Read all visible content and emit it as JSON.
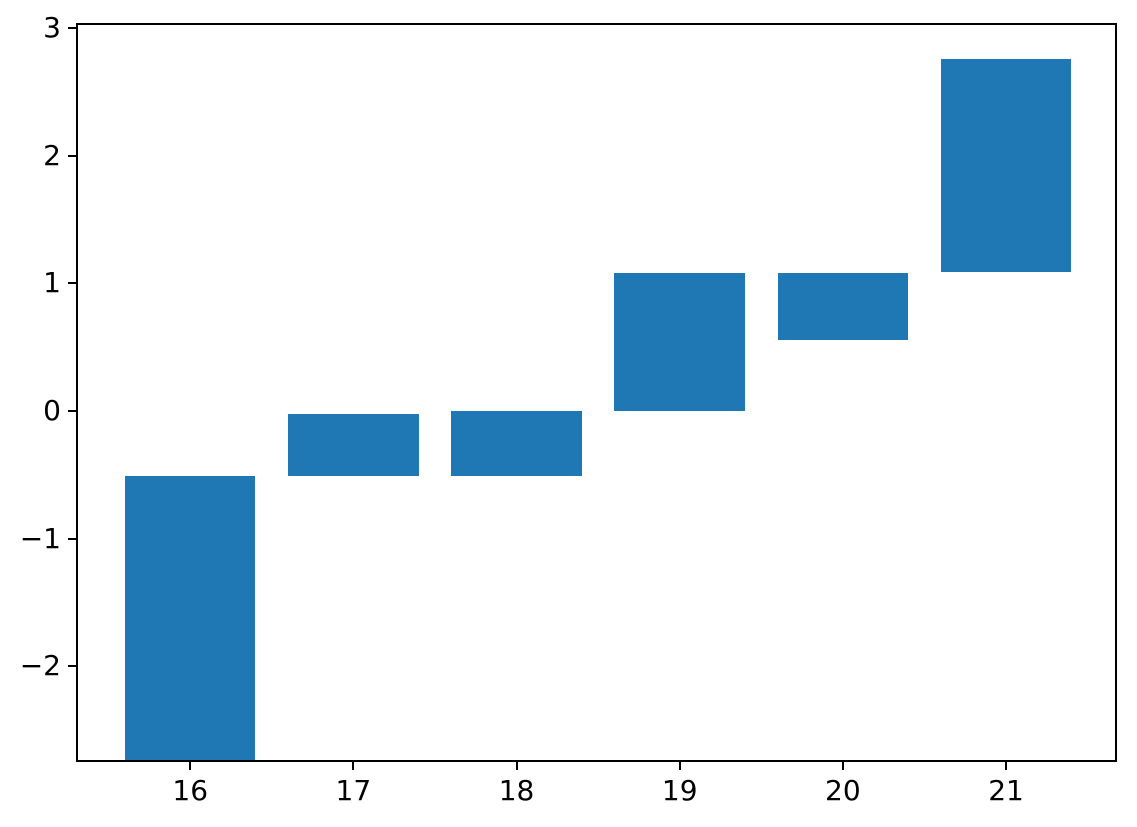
{
  "figure": {
    "background": "#ffffff"
  },
  "chart_data": {
    "type": "bar",
    "subtype": "floating-range-bars",
    "title": "",
    "xlabel": "",
    "ylabel": "",
    "grid": false,
    "legend": false,
    "bar_color": "#1f77b4",
    "spine_color": "#000000",
    "tick_label_color": "#000000",
    "bar_width": 0.8,
    "xlim": [
      15.3,
      21.68
    ],
    "ylim": [
      -2.75,
      3.04
    ],
    "bars": [
      {
        "x": 16,
        "bottom": -2.75,
        "top": -0.51
      },
      {
        "x": 17,
        "bottom": -0.51,
        "top": -0.02
      },
      {
        "x": 18,
        "bottom": -0.51,
        "top": 0.0
      },
      {
        "x": 19,
        "bottom": 0.0,
        "top": 1.08
      },
      {
        "x": 20,
        "bottom": 0.56,
        "top": 1.08
      },
      {
        "x": 21,
        "bottom": 1.09,
        "top": 2.76
      }
    ],
    "xticks": {
      "values": [
        16,
        17,
        18,
        19,
        20,
        21
      ],
      "labels": [
        "16",
        "17",
        "18",
        "19",
        "20",
        "21"
      ]
    },
    "yticks": {
      "values": [
        3,
        2,
        1,
        0,
        -1,
        -2
      ],
      "labels": [
        "3",
        "2",
        "1",
        "0",
        "−1",
        "−2"
      ]
    }
  }
}
